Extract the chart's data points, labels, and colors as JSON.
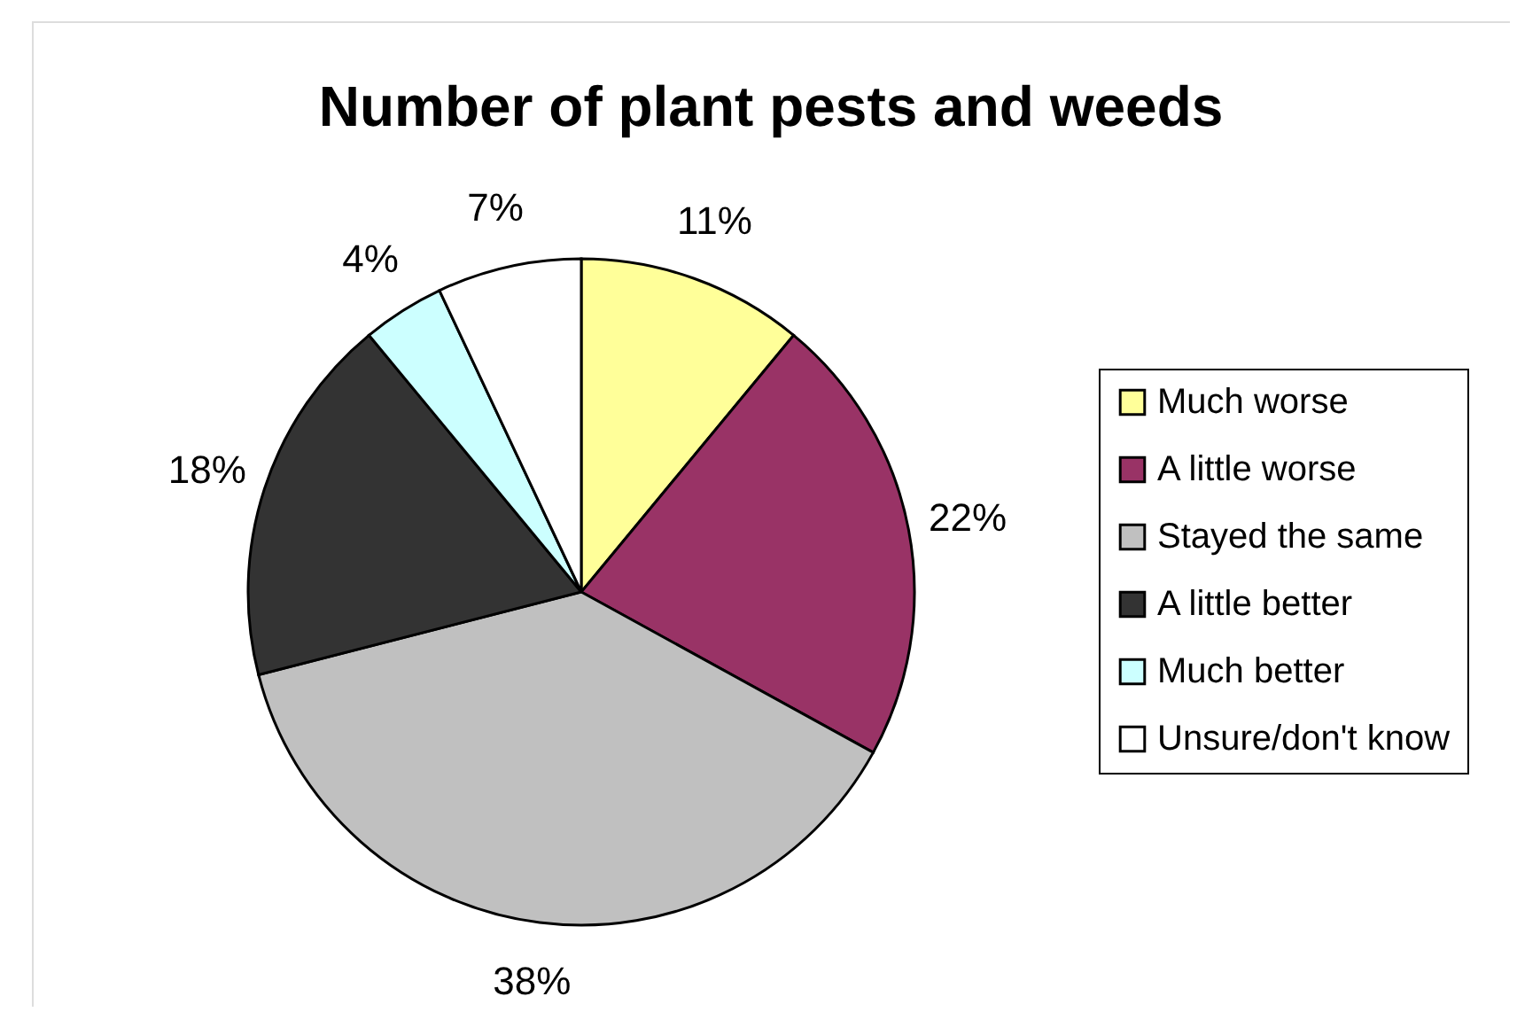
{
  "chart_data": {
    "type": "pie",
    "title": "Number of plant pests and weeds",
    "categories": [
      "Much worse",
      "A little worse",
      "Stayed the same",
      "A little better",
      "Much better",
      "Unsure/don't know"
    ],
    "values": [
      11,
      22,
      38,
      18,
      4,
      7
    ],
    "colors": [
      "#ffff99",
      "#993366",
      "#c0c0c0",
      "#333333",
      "#ccffff",
      "#ffffff"
    ],
    "value_labels": [
      "11%",
      "22%",
      "38%",
      "18%",
      "4%",
      "7%"
    ],
    "legend": "right"
  }
}
